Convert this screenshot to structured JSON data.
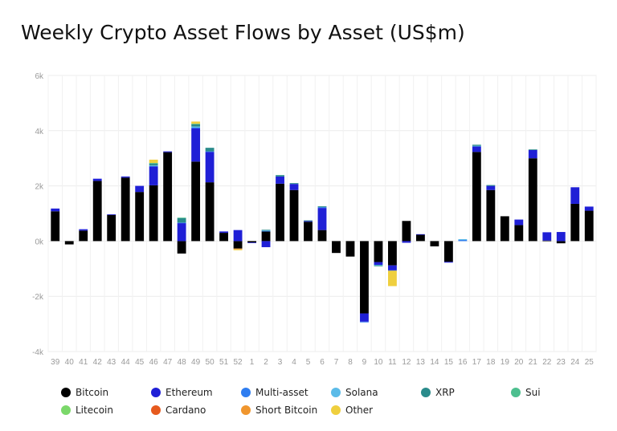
{
  "chart_data": {
    "type": "bar",
    "stacked": true,
    "title": "Weekly Crypto Asset Flows by Asset (US$m)",
    "xlabel": "",
    "ylabel": "",
    "ylim": [
      -4000,
      6000
    ],
    "yticks": [
      -4000,
      -2000,
      0,
      2000,
      4000,
      6000
    ],
    "ytick_labels": [
      "-4k",
      "-2k",
      "0k",
      "2k",
      "4k",
      "6k"
    ],
    "grid": true,
    "legend_position": "bottom",
    "categories": [
      "39",
      "40",
      "41",
      "42",
      "43",
      "44",
      "45",
      "46",
      "47",
      "48",
      "49",
      "50",
      "51",
      "52",
      "1",
      "2",
      "3",
      "4",
      "5",
      "6",
      "7",
      "8",
      "9",
      "10",
      "11",
      "12",
      "13",
      "14",
      "15",
      "16",
      "17",
      "18",
      "19",
      "20",
      "21",
      "22",
      "23",
      "24",
      "25"
    ],
    "series": [
      {
        "name": "Bitcoin",
        "color": "#000000",
        "values": [
          1080,
          -120,
          380,
          2180,
          950,
          2300,
          1780,
          2020,
          3220,
          -450,
          2880,
          2130,
          300,
          -270,
          -50,
          350,
          2080,
          1850,
          700,
          400,
          -430,
          -560,
          -2620,
          -760,
          -880,
          730,
          230,
          -190,
          -750,
          0,
          3230,
          1850,
          900,
          580,
          3000,
          20,
          -80,
          1350,
          1100
        ]
      },
      {
        "name": "Ethereum",
        "color": "#1f1fd6",
        "values": [
          100,
          0,
          50,
          80,
          20,
          40,
          220,
          680,
          30,
          650,
          1200,
          1100,
          50,
          400,
          -20,
          -220,
          260,
          220,
          30,
          800,
          0,
          0,
          -300,
          -100,
          -180,
          -60,
          20,
          0,
          -30,
          0,
          200,
          150,
          0,
          200,
          300,
          300,
          330,
          600,
          150
        ]
      },
      {
        "name": "Multi-asset",
        "color": "#2f7df0",
        "values": [
          0,
          0,
          0,
          0,
          0,
          0,
          0,
          20,
          0,
          20,
          30,
          20,
          0,
          0,
          0,
          20,
          0,
          0,
          0,
          30,
          0,
          0,
          -20,
          0,
          -10,
          0,
          0,
          0,
          0,
          40,
          0,
          0,
          0,
          0,
          0,
          0,
          0,
          0,
          0
        ]
      },
      {
        "name": "Solana",
        "color": "#5bbbe8",
        "values": [
          0,
          0,
          0,
          0,
          0,
          0,
          0,
          20,
          0,
          0,
          40,
          0,
          0,
          0,
          0,
          20,
          0,
          0,
          0,
          0,
          0,
          0,
          0,
          -20,
          0,
          0,
          0,
          0,
          0,
          30,
          20,
          0,
          0,
          0,
          0,
          0,
          0,
          0,
          0
        ]
      },
      {
        "name": "XRP",
        "color": "#2a8b8b",
        "values": [
          0,
          0,
          0,
          0,
          0,
          0,
          0,
          60,
          0,
          160,
          80,
          130,
          0,
          0,
          0,
          20,
          50,
          30,
          20,
          30,
          0,
          0,
          0,
          -30,
          0,
          0,
          0,
          0,
          0,
          0,
          40,
          30,
          0,
          0,
          20,
          0,
          0,
          0,
          0
        ]
      },
      {
        "name": "Sui",
        "color": "#4dbf8f",
        "values": [
          0,
          0,
          0,
          0,
          0,
          0,
          0,
          30,
          0,
          20,
          20,
          0,
          0,
          0,
          0,
          0,
          0,
          0,
          0,
          0,
          0,
          0,
          0,
          0,
          0,
          0,
          0,
          0,
          0,
          0,
          0,
          0,
          0,
          0,
          0,
          0,
          0,
          0,
          0
        ]
      },
      {
        "name": "Litecoin",
        "color": "#7bd86a",
        "values": [
          0,
          0,
          0,
          0,
          0,
          0,
          0,
          0,
          0,
          0,
          0,
          0,
          0,
          0,
          0,
          0,
          0,
          0,
          0,
          0,
          0,
          0,
          0,
          0,
          0,
          0,
          0,
          0,
          0,
          0,
          0,
          0,
          0,
          0,
          0,
          0,
          0,
          0,
          0
        ]
      },
      {
        "name": "Cardano",
        "color": "#e65a1e",
        "values": [
          0,
          0,
          0,
          0,
          0,
          0,
          0,
          0,
          0,
          0,
          0,
          0,
          0,
          0,
          0,
          0,
          0,
          0,
          0,
          0,
          0,
          0,
          0,
          0,
          0,
          0,
          0,
          0,
          0,
          0,
          0,
          0,
          0,
          0,
          0,
          0,
          0,
          0,
          0
        ]
      },
      {
        "name": "Short Bitcoin",
        "color": "#f0962e",
        "values": [
          0,
          0,
          0,
          0,
          0,
          0,
          0,
          0,
          0,
          0,
          0,
          0,
          0,
          -30,
          0,
          0,
          0,
          0,
          0,
          0,
          0,
          0,
          0,
          0,
          0,
          0,
          0,
          0,
          0,
          0,
          0,
          0,
          0,
          0,
          0,
          0,
          0,
          0,
          0
        ]
      },
      {
        "name": "Other",
        "color": "#efcf3e",
        "values": [
          0,
          0,
          0,
          0,
          0,
          0,
          0,
          120,
          0,
          0,
          80,
          0,
          0,
          -30,
          0,
          0,
          0,
          0,
          0,
          0,
          0,
          0,
          0,
          0,
          -560,
          0,
          0,
          0,
          0,
          0,
          0,
          0,
          0,
          0,
          0,
          0,
          0,
          0,
          0
        ]
      }
    ]
  }
}
